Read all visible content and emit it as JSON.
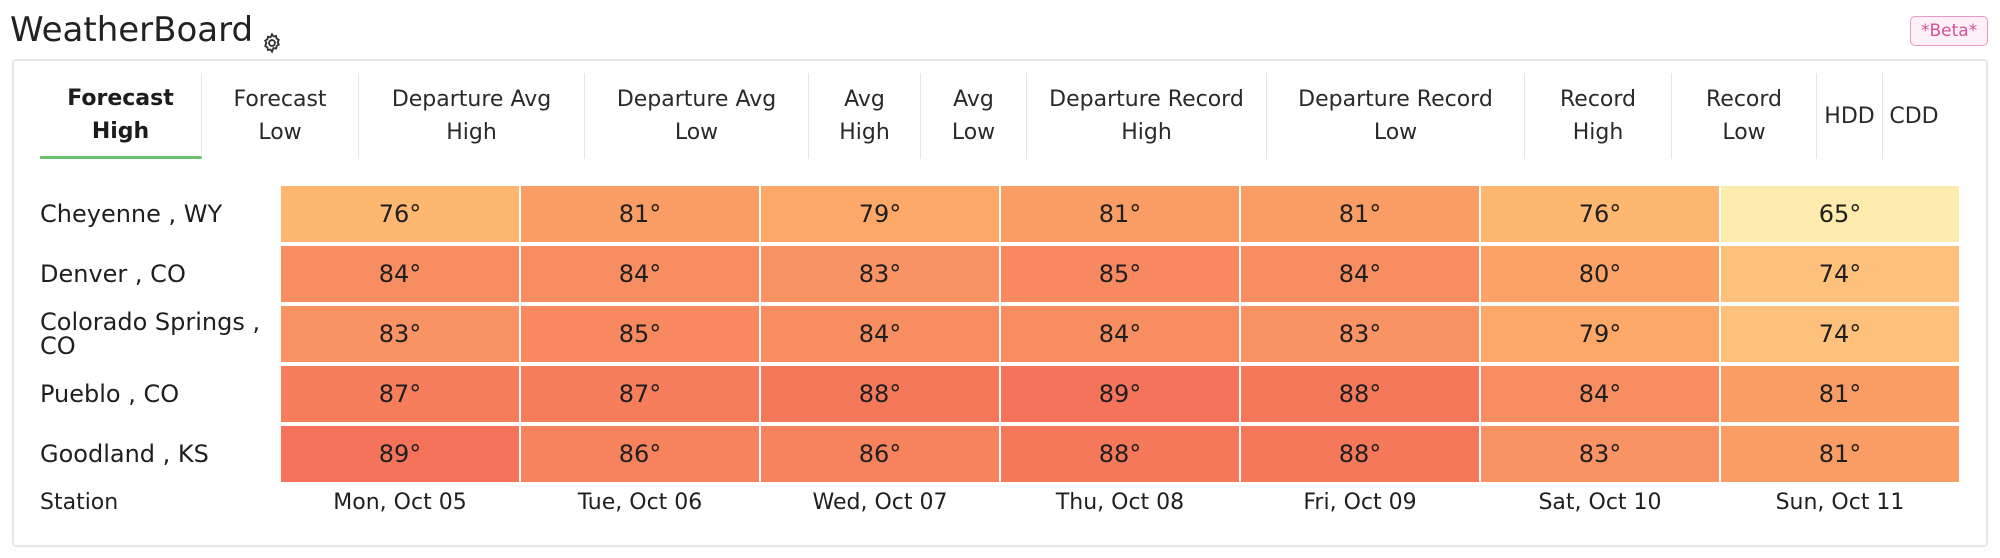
{
  "header": {
    "title": "WeatherBoard",
    "settings_icon": "gear-icon",
    "badge": "*Beta*"
  },
  "tabs": [
    {
      "line1": "Forecast",
      "line2": "High",
      "active": true
    },
    {
      "line1": "Forecast",
      "line2": "Low"
    },
    {
      "line1": "Departure Avg",
      "line2": "High"
    },
    {
      "line1": "Departure Avg",
      "line2": "Low"
    },
    {
      "line1": "Avg",
      "line2": "High"
    },
    {
      "line1": "Avg",
      "line2": "Low"
    },
    {
      "line1": "Departure Record",
      "line2": "High"
    },
    {
      "line1": "Departure Record",
      "line2": "Low"
    },
    {
      "line1": "Record",
      "line2": "High"
    },
    {
      "line1": "Record",
      "line2": "Low"
    },
    {
      "line1": "HDD",
      "line2": ""
    },
    {
      "line1": "CDD",
      "line2": ""
    }
  ],
  "chart_data": {
    "type": "heatmap",
    "x_label": "Station",
    "columns": [
      "Mon, Oct 05",
      "Tue, Oct 06",
      "Wed, Oct 07",
      "Thu, Oct 08",
      "Fri, Oct 09",
      "Sat, Oct 10",
      "Sun, Oct 11"
    ],
    "rows": [
      {
        "station": "Cheyenne , WY",
        "values": [
          76,
          81,
          79,
          81,
          81,
          76,
          65
        ]
      },
      {
        "station": "Denver , CO",
        "values": [
          84,
          84,
          83,
          85,
          84,
          80,
          74
        ]
      },
      {
        "station": "Colorado Springs , CO",
        "values": [
          83,
          85,
          84,
          84,
          83,
          79,
          74
        ]
      },
      {
        "station": "Pueblo , CO",
        "values": [
          87,
          87,
          88,
          89,
          88,
          84,
          81
        ]
      },
      {
        "station": "Goodland , KS",
        "values": [
          89,
          86,
          86,
          88,
          88,
          83,
          81
        ]
      }
    ],
    "unit": "°",
    "color_scale": {
      "low": "#fdecad",
      "mid": "#fdb26b",
      "high": "#f4735a",
      "min": 65,
      "max": 89
    }
  }
}
